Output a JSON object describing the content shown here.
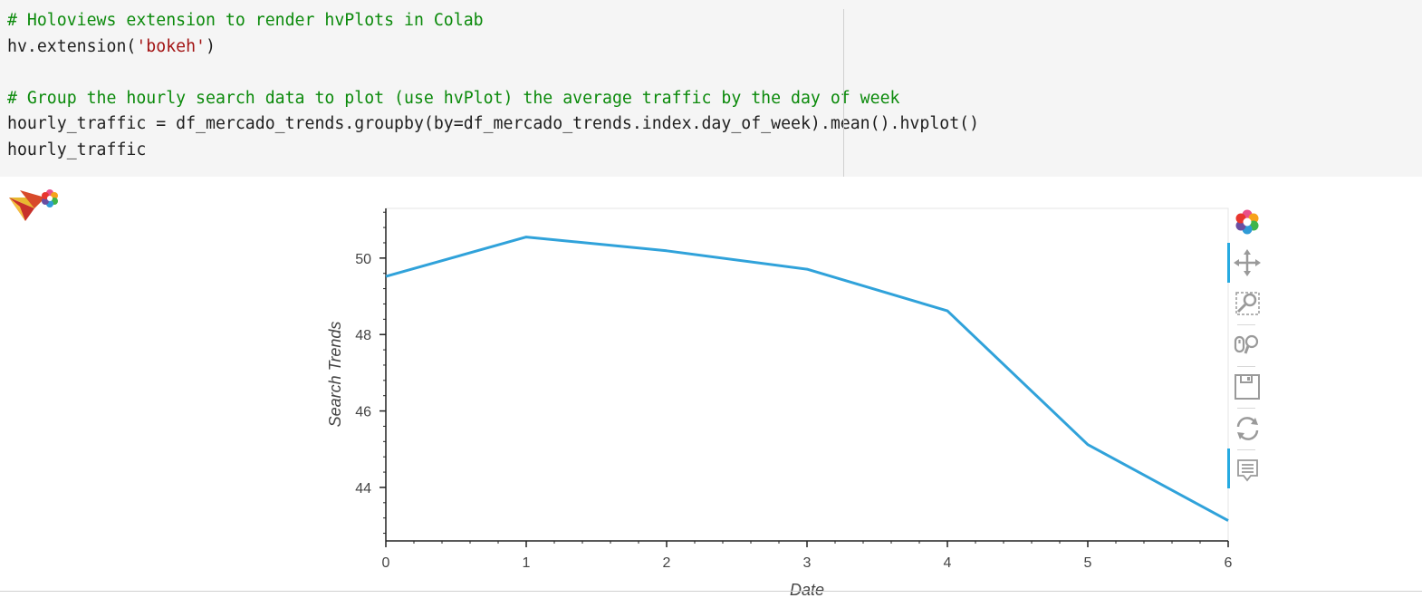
{
  "code_cell": {
    "line1_comment": "# Holoviews extension to render hvPlots in Colab",
    "line2_prefix": "hv.extension(",
    "line2_string": "'bokeh'",
    "line2_suffix": ")",
    "line4_comment": "# Group the hourly search data to plot (use hvPlot) the average traffic by the day of week",
    "line5": "hourly_traffic = df_mercado_trends.groupby(by=df_mercado_trends.index.day_of_week).mean().hvplot()",
    "line6": "hourly_traffic"
  },
  "toolbar": {
    "tools": [
      {
        "icon": "bokeh-logo-icon"
      },
      {
        "icon": "pan-icon",
        "active": true
      },
      {
        "icon": "box-zoom-icon"
      },
      {
        "icon": "wheel-zoom-icon"
      },
      {
        "icon": "save-icon"
      },
      {
        "icon": "reset-icon"
      },
      {
        "icon": "hover-icon",
        "active": true
      }
    ]
  },
  "colors": {
    "line": "#30a2da",
    "accent": "#26aae1",
    "comment": "#0b8a0b",
    "string": "#a31515"
  },
  "chart_data": {
    "type": "line",
    "x": [
      0,
      1,
      2,
      3,
      4,
      5,
      6
    ],
    "series": [
      {
        "values": [
          49.52,
          50.55,
          50.19,
          49.71,
          48.62,
          45.12,
          43.13
        ]
      }
    ],
    "xlabel": "Date",
    "ylabel": "Search Trends",
    "xticks": [
      "0",
      "1",
      "2",
      "3",
      "4",
      "5",
      "6"
    ],
    "yticks": [
      "44",
      "46",
      "48",
      "50"
    ],
    "xlim": [
      0,
      6
    ],
    "ylim": [
      42.6,
      51.3
    ],
    "grid": false
  }
}
